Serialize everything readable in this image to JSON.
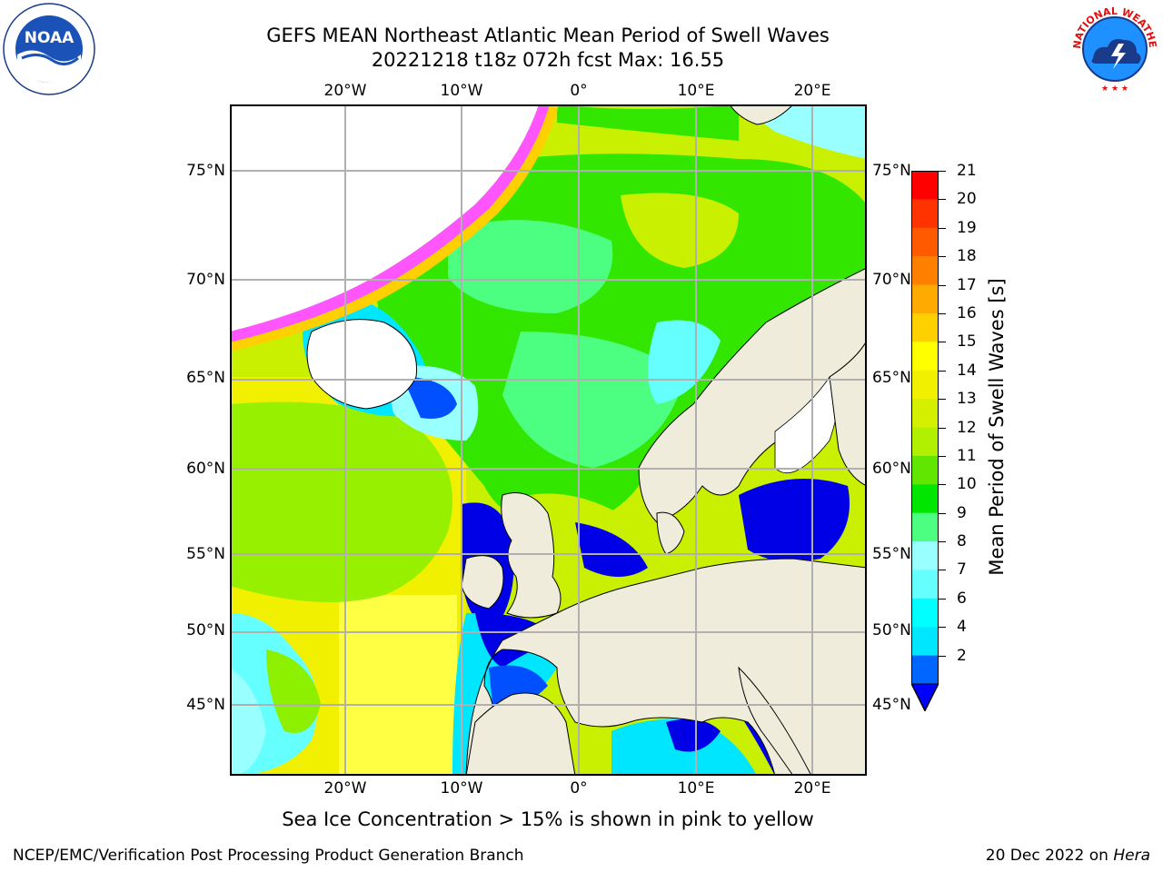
{
  "title": {
    "line1": "GEFS MEAN Northeast Atlantic Mean Period of Swell Waves",
    "line2": "20221218 t18z 072h fcst   Max: 16.55"
  },
  "logos": {
    "left": "NOAA",
    "right": "NATIONAL WEATHER SERVICE"
  },
  "map": {
    "lon_labels": [
      "20°W",
      "10°W",
      "0°",
      "10°E",
      "20°E"
    ],
    "lat_labels": [
      "75°N",
      "70°N",
      "65°N",
      "60°N",
      "55°N",
      "50°N",
      "45°N"
    ],
    "ocean_colors": {
      "yellow": "#f0f000",
      "light_yellow": "#ffff66",
      "yellow_green": "#c8f000",
      "light_green": "#8cf000",
      "green": "#33e600",
      "teal_green": "#4dff7f",
      "light_cyan": "#99ffff",
      "cyan": "#00e6ff",
      "blue": "#0050ff",
      "dark_blue": "#0000e6",
      "ice_pink": "#ff55ff",
      "land": "#efecdc"
    }
  },
  "colorbar": {
    "label": "Mean Period of Swell Waves [s]",
    "ticks": [
      "21",
      "20",
      "19",
      "18",
      "17",
      "16",
      "15",
      "14",
      "13",
      "12",
      "11",
      "10",
      "9",
      "8",
      "7",
      "6",
      "4",
      "2"
    ],
    "colors": [
      "#ff0000",
      "#ff3300",
      "#ff5a00",
      "#ff8000",
      "#ffaa00",
      "#ffd000",
      "#ffff00",
      "#f0f000",
      "#d4f000",
      "#b0f000",
      "#60e600",
      "#00e600",
      "#4dff80",
      "#99ffff",
      "#66ffff",
      "#00ffff",
      "#00e6ff",
      "#0066ff"
    ],
    "extend_color": "#0000ff"
  },
  "note": "Sea Ice Concentration > 15% is shown in pink to yellow",
  "footer": {
    "left": "NCEP/EMC/Verification Post Processing Product Generation Branch",
    "date": "20 Dec 2022 on ",
    "machine": "Hera"
  }
}
